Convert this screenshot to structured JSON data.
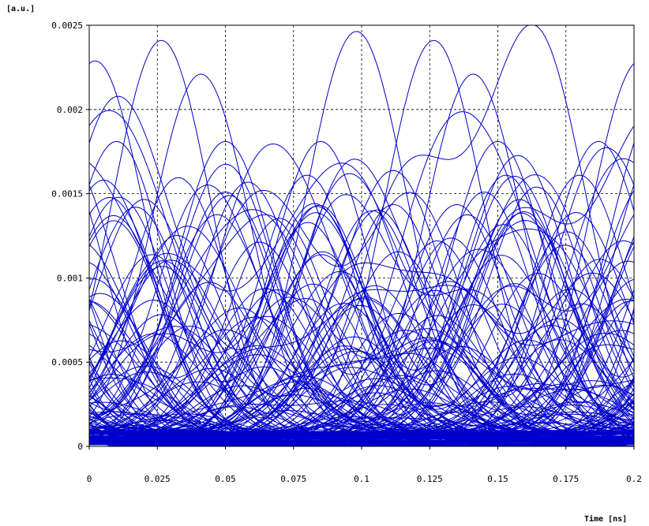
{
  "chart_data": {
    "type": "line",
    "title": "",
    "ylabel": "[a.u.]",
    "xlabel": "Time [ns]",
    "xlim": [
      0,
      0.2
    ],
    "ylim": [
      0,
      0.0025
    ],
    "x_ticks": [
      "0",
      "0.025",
      "0.05",
      "0.075",
      "0.1",
      "0.125",
      "0.15",
      "0.175",
      "0.2"
    ],
    "y_ticks": [
      "0",
      "0.0005",
      "0.001",
      "0.0015",
      "0.002",
      "0.0025"
    ],
    "grid": true,
    "grid_style": "dashed",
    "series_color": "#0000cc",
    "description": "Eye diagram: many overlaid pulse traces sweeping across a 0.2 ns window",
    "symbol_period": 0.1,
    "pulse_sigma": 0.018,
    "pulse_peaks_shown": [
      {
        "center": 0.0265,
        "amplitude": 0.0024
      },
      {
        "center": 0.1265,
        "amplitude": 0.0024
      },
      {
        "center": 0.041,
        "amplitude": 0.0022
      },
      {
        "center": 0.141,
        "amplitude": 0.0022
      },
      {
        "center": 0.01,
        "amplitude": 0.0018
      },
      {
        "center": 0.05,
        "amplitude": 0.0018
      },
      {
        "center": 0.085,
        "amplitude": 0.0018
      },
      {
        "center": 0.15,
        "amplitude": 0.0018
      },
      {
        "center": 0.187,
        "amplitude": 0.0018
      },
      {
        "center": 0.08,
        "amplitude": 0.0016
      },
      {
        "center": 0.153,
        "amplitude": 0.0016
      },
      {
        "center": 0.18,
        "amplitude": 0.0016
      },
      {
        "center": 0.05,
        "amplitude": 0.0015
      },
      {
        "center": 0.145,
        "amplitude": 0.0015
      }
    ]
  }
}
